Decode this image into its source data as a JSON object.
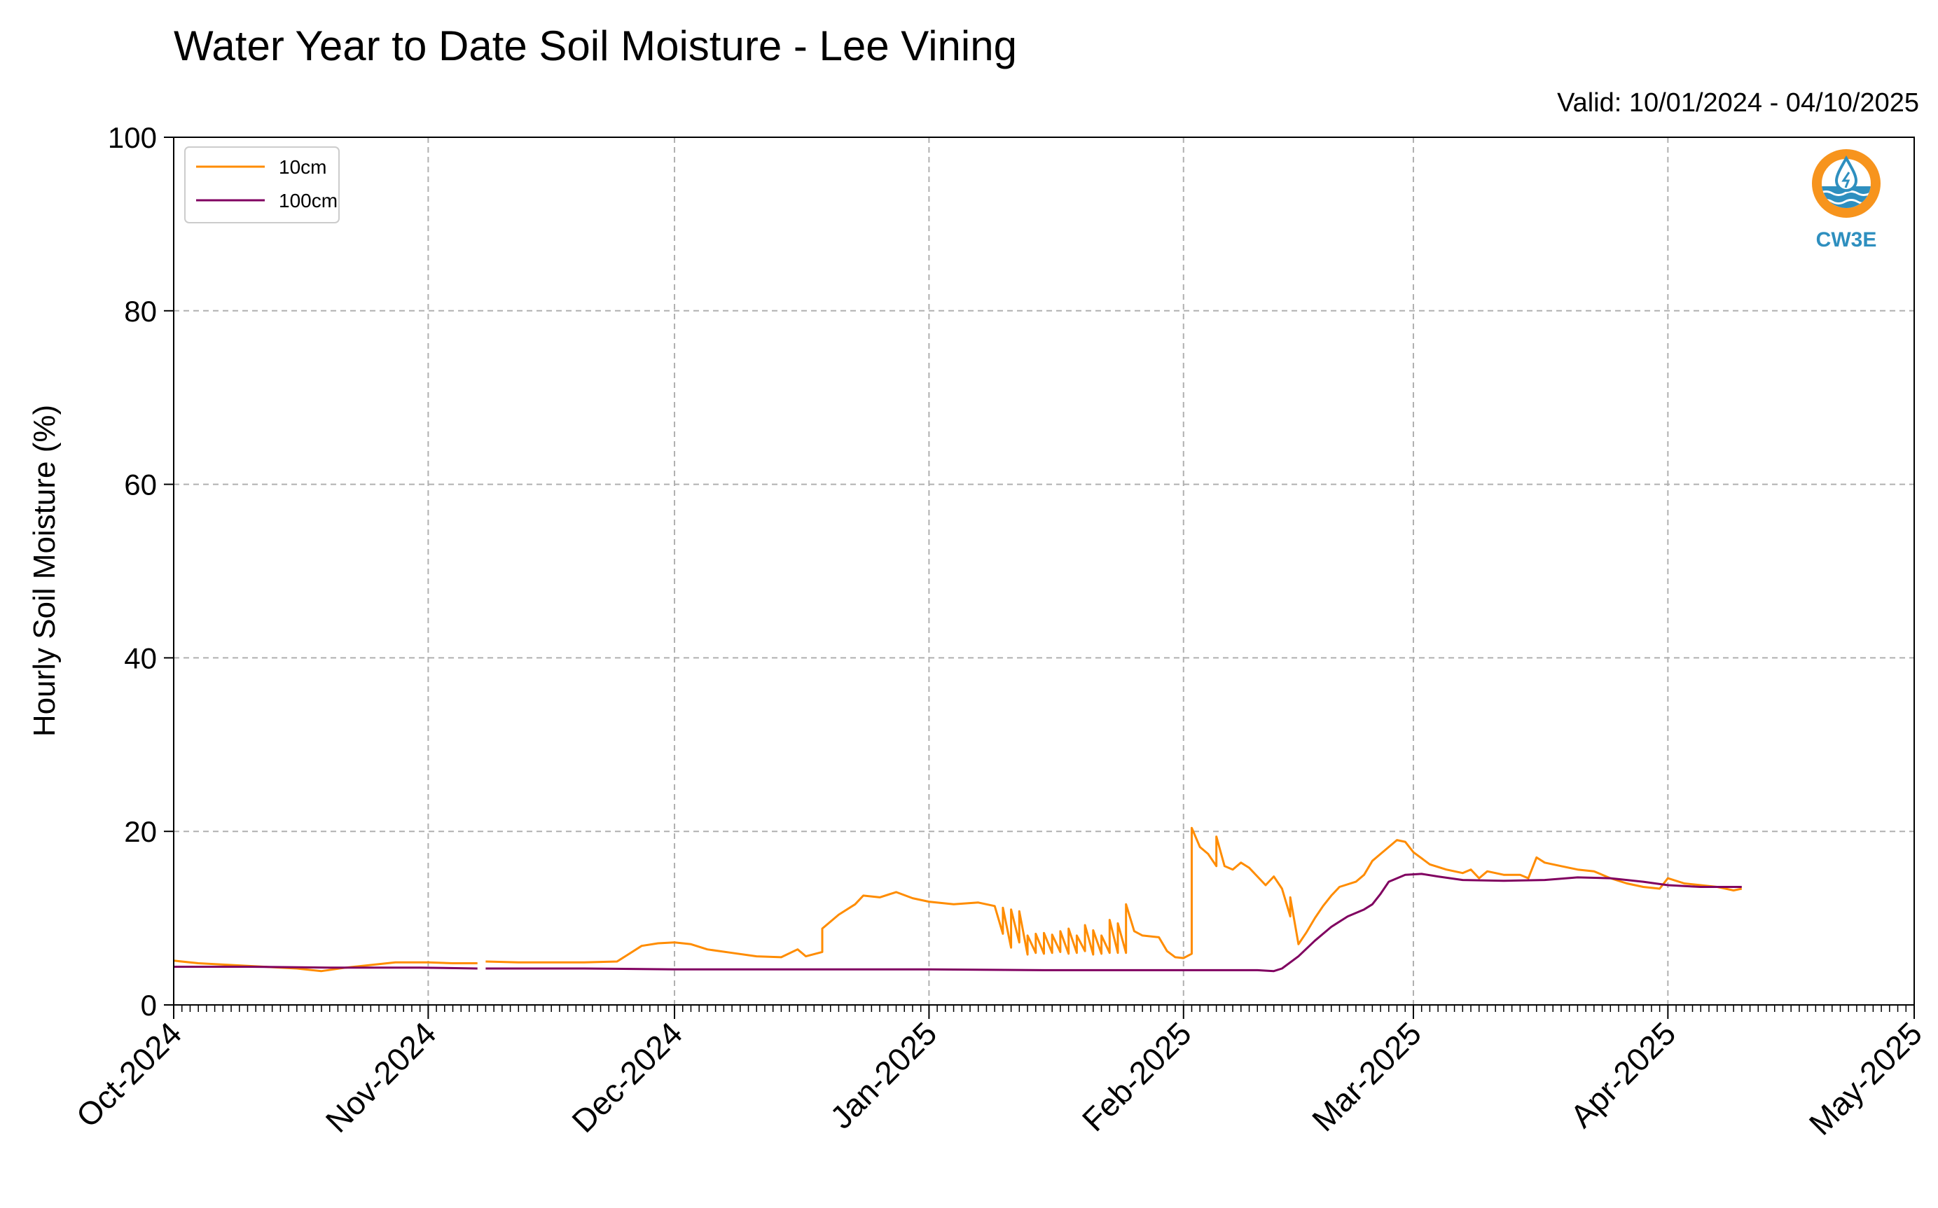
{
  "chart_data": {
    "type": "line",
    "title": "Water Year to Date Soil Moisture - Lee Vining",
    "subtitle": "Valid: 10/01/2024 - 04/10/2025",
    "xlabel": "",
    "ylabel": "Hourly Soil Moisture (%)",
    "xlim": [
      "2024-10-01",
      "2025-05-01"
    ],
    "ylim": [
      0,
      100
    ],
    "yticks": [
      0,
      20,
      40,
      60,
      80,
      100
    ],
    "xticks": [
      {
        "date": "2024-10-01",
        "label": "Oct-2024"
      },
      {
        "date": "2024-11-01",
        "label": "Nov-2024"
      },
      {
        "date": "2024-12-01",
        "label": "Dec-2024"
      },
      {
        "date": "2025-01-01",
        "label": "Jan-2025"
      },
      {
        "date": "2025-02-01",
        "label": "Feb-2025"
      },
      {
        "date": "2025-03-01",
        "label": "Mar-2025"
      },
      {
        "date": "2025-04-01",
        "label": "Apr-2025"
      },
      {
        "date": "2025-05-01",
        "label": "May-2025"
      }
    ],
    "grid": true,
    "legend_position": "top-left",
    "series": [
      {
        "name": "10cm",
        "color": "#ff8c00",
        "segments": [
          [
            [
              "2024-10-01",
              5.1
            ],
            [
              "2024-10-04",
              4.8
            ],
            [
              "2024-10-08",
              4.6
            ],
            [
              "2024-10-12",
              4.4
            ],
            [
              "2024-10-16",
              4.2
            ],
            [
              "2024-10-19",
              3.9
            ],
            [
              "2024-10-22",
              4.3
            ],
            [
              "2024-10-25",
              4.6
            ],
            [
              "2024-10-28",
              4.9
            ],
            [
              "2024-11-01",
              4.9
            ],
            [
              "2024-11-04",
              4.8
            ],
            [
              "2024-11-07",
              4.8
            ]
          ],
          [
            [
              "2024-11-08",
              5.0
            ],
            [
              "2024-11-12",
              4.9
            ],
            [
              "2024-11-16",
              4.9
            ],
            [
              "2024-11-20",
              4.9
            ],
            [
              "2024-11-24",
              5.0
            ],
            [
              "2024-11-25",
              5.6
            ],
            [
              "2024-11-27",
              6.8
            ],
            [
              "2024-11-29",
              7.1
            ],
            [
              "2024-12-01",
              7.2
            ],
            [
              "2024-12-03",
              7.0
            ],
            [
              "2024-12-05",
              6.4
            ],
            [
              "2024-12-08",
              6.0
            ],
            [
              "2024-12-11",
              5.6
            ],
            [
              "2024-12-14",
              5.5
            ],
            [
              "2024-12-16",
              6.4
            ],
            [
              "2024-12-17",
              5.6
            ],
            [
              "2024-12-19",
              6.1
            ],
            [
              "2024-12-19",
              8.8
            ],
            [
              "2024-12-21",
              10.4
            ],
            [
              "2024-12-23",
              11.6
            ],
            [
              "2024-12-24",
              12.6
            ],
            [
              "2024-12-26",
              12.4
            ],
            [
              "2024-12-28",
              13.0
            ],
            [
              "2024-12-30",
              12.3
            ],
            [
              "2025-01-01",
              11.9
            ],
            [
              "2025-01-04",
              11.6
            ],
            [
              "2025-01-07",
              11.8
            ],
            [
              "2025-01-09",
              11.4
            ],
            [
              "2025-01-10",
              8.2
            ],
            [
              "2025-01-10",
              11.2
            ],
            [
              "2025-01-11",
              6.6
            ],
            [
              "2025-01-11",
              11.0
            ],
            [
              "2025-01-12",
              7.2
            ],
            [
              "2025-01-12",
              10.8
            ],
            [
              "2025-01-13",
              5.8
            ],
            [
              "2025-01-13",
              8.0
            ],
            [
              "2025-01-14",
              6.0
            ],
            [
              "2025-01-14",
              8.2
            ],
            [
              "2025-01-15",
              5.9
            ],
            [
              "2025-01-15",
              8.3
            ],
            [
              "2025-01-16",
              6.0
            ],
            [
              "2025-01-16",
              8.1
            ],
            [
              "2025-01-17",
              6.1
            ],
            [
              "2025-01-17",
              8.5
            ],
            [
              "2025-01-18",
              5.9
            ],
            [
              "2025-01-18",
              8.8
            ],
            [
              "2025-01-19",
              6.0
            ],
            [
              "2025-01-19",
              8.0
            ],
            [
              "2025-01-20",
              6.2
            ],
            [
              "2025-01-20",
              9.2
            ],
            [
              "2025-01-21",
              5.8
            ],
            [
              "2025-01-21",
              8.6
            ],
            [
              "2025-01-22",
              5.9
            ],
            [
              "2025-01-22",
              8.0
            ],
            [
              "2025-01-23",
              6.0
            ],
            [
              "2025-01-23",
              9.8
            ],
            [
              "2025-01-24",
              6.0
            ],
            [
              "2025-01-24",
              9.4
            ],
            [
              "2025-01-25",
              6.0
            ],
            [
              "2025-01-25",
              11.6
            ],
            [
              "2025-01-26",
              8.5
            ],
            [
              "2025-01-27",
              8.0
            ],
            [
              "2025-01-29",
              7.8
            ],
            [
              "2025-01-30",
              6.2
            ],
            [
              "2025-01-31",
              5.5
            ],
            [
              "2025-02-01",
              5.4
            ],
            [
              "2025-02-02",
              5.9
            ],
            [
              "2025-02-02",
              20.4
            ],
            [
              "2025-02-03",
              18.2
            ],
            [
              "2025-02-04",
              17.4
            ],
            [
              "2025-02-05",
              16.0
            ],
            [
              "2025-02-05",
              19.4
            ],
            [
              "2025-02-06",
              16.0
            ],
            [
              "2025-02-07",
              15.6
            ],
            [
              "2025-02-08",
              16.4
            ],
            [
              "2025-02-09",
              15.8
            ],
            [
              "2025-02-10",
              14.8
            ],
            [
              "2025-02-11",
              13.8
            ],
            [
              "2025-02-12",
              14.8
            ],
            [
              "2025-02-13",
              13.4
            ],
            [
              "2025-02-14",
              10.2
            ],
            [
              "2025-02-14",
              12.4
            ],
            [
              "2025-02-15",
              7.0
            ],
            [
              "2025-02-16",
              8.4
            ],
            [
              "2025-02-17",
              10.0
            ],
            [
              "2025-02-18",
              11.4
            ],
            [
              "2025-02-19",
              12.6
            ],
            [
              "2025-02-20",
              13.6
            ],
            [
              "2025-02-22",
              14.2
            ],
            [
              "2025-02-23",
              15.0
            ],
            [
              "2025-02-24",
              16.6
            ],
            [
              "2025-02-25",
              17.4
            ],
            [
              "2025-02-26",
              18.2
            ],
            [
              "2025-02-27",
              19.0
            ],
            [
              "2025-02-28",
              18.8
            ],
            [
              "2025-03-01",
              17.6
            ],
            [
              "2025-03-03",
              16.2
            ],
            [
              "2025-03-05",
              15.6
            ],
            [
              "2025-03-07",
              15.2
            ],
            [
              "2025-03-08",
              15.6
            ],
            [
              "2025-03-09",
              14.6
            ],
            [
              "2025-03-10",
              15.4
            ],
            [
              "2025-03-12",
              15.0
            ],
            [
              "2025-03-14",
              15.0
            ],
            [
              "2025-03-15",
              14.6
            ],
            [
              "2025-03-16",
              17.0
            ],
            [
              "2025-03-17",
              16.4
            ],
            [
              "2025-03-19",
              16.0
            ],
            [
              "2025-03-21",
              15.6
            ],
            [
              "2025-03-23",
              15.4
            ],
            [
              "2025-03-25",
              14.6
            ],
            [
              "2025-03-27",
              14.0
            ],
            [
              "2025-03-29",
              13.6
            ],
            [
              "2025-03-31",
              13.4
            ],
            [
              "2025-04-01",
              14.6
            ],
            [
              "2025-04-03",
              14.0
            ],
            [
              "2025-04-05",
              13.8
            ],
            [
              "2025-04-07",
              13.6
            ],
            [
              "2025-04-09",
              13.2
            ],
            [
              "2025-04-10",
              13.4
            ]
          ]
        ]
      },
      {
        "name": "100cm",
        "color": "#800060",
        "segments": [
          [
            [
              "2024-10-01",
              4.4
            ],
            [
              "2024-10-10",
              4.4
            ],
            [
              "2024-10-20",
              4.3
            ],
            [
              "2024-10-31",
              4.3
            ],
            [
              "2024-11-07",
              4.2
            ]
          ],
          [
            [
              "2024-11-08",
              4.2
            ],
            [
              "2024-11-20",
              4.2
            ],
            [
              "2024-12-01",
              4.1
            ],
            [
              "2024-12-15",
              4.1
            ],
            [
              "2025-01-01",
              4.1
            ],
            [
              "2025-01-15",
              4.0
            ],
            [
              "2025-02-01",
              4.0
            ],
            [
              "2025-02-10",
              4.0
            ],
            [
              "2025-02-12",
              3.9
            ],
            [
              "2025-02-13",
              4.2
            ],
            [
              "2025-02-15",
              5.6
            ],
            [
              "2025-02-17",
              7.4
            ],
            [
              "2025-02-19",
              9.0
            ],
            [
              "2025-02-21",
              10.2
            ],
            [
              "2025-02-23",
              11.0
            ],
            [
              "2025-02-24",
              11.6
            ],
            [
              "2025-02-25",
              12.8
            ],
            [
              "2025-02-26",
              14.2
            ],
            [
              "2025-02-28",
              15.0
            ],
            [
              "2025-03-02",
              15.1
            ],
            [
              "2025-03-04",
              14.8
            ],
            [
              "2025-03-07",
              14.4
            ],
            [
              "2025-03-12",
              14.3
            ],
            [
              "2025-03-17",
              14.4
            ],
            [
              "2025-03-21",
              14.7
            ],
            [
              "2025-03-25",
              14.6
            ],
            [
              "2025-03-29",
              14.2
            ],
            [
              "2025-04-01",
              13.8
            ],
            [
              "2025-04-05",
              13.6
            ],
            [
              "2025-04-10",
              13.6
            ]
          ]
        ]
      }
    ]
  },
  "logo": {
    "text": "CW3E",
    "icon": "water-drop-sun-icon",
    "ring_color": "#f7941d",
    "wave_color": "#2e8fbf"
  }
}
